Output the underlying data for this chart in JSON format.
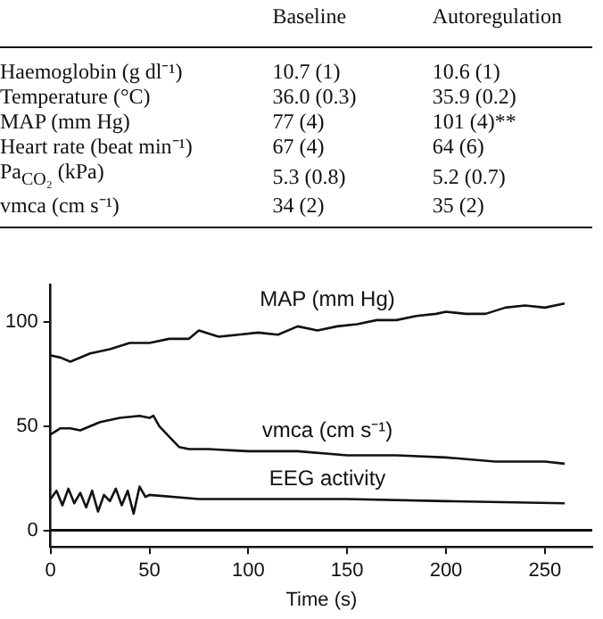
{
  "chart_data": {
    "type": "line",
    "xlabel": "Time (s)",
    "xlim": [
      0,
      274
    ],
    "xticks": [
      0,
      50,
      100,
      150,
      200,
      250
    ],
    "ylim": [
      -8,
      118
    ],
    "yticks": [
      0,
      50,
      100
    ],
    "grid": false,
    "legend": false,
    "marker": "none",
    "line_style": "solid",
    "ref_lines": [
      {
        "axis": "y",
        "value": 0,
        "color": "#111111"
      }
    ],
    "annotations": [
      "Baseline",
      "Autoregulation",
      "Haemoglobin (g dl⁻¹)",
      "10.7 (1)",
      "10.6 (1)",
      "Temperature (°C)",
      "36.0 (0.3)",
      "35.9 (0.2)",
      "MAP (mm Hg)",
      "77 (4)",
      "101 (4)**",
      "Heart rate (beat min⁻¹)",
      "67 (4)",
      "64 (6)",
      "Pa$_{CO₂}$ (kPa)",
      "5.3 (0.8)",
      "5.2 (0.7)",
      "vmca (cm s⁻¹)",
      "34 (2)",
      "35 (2)"
    ],
    "series": [
      {
        "name": "MAP (mm Hg)",
        "color": "#111111",
        "x": [
          0,
          5,
          10,
          20,
          30,
          40,
          50,
          60,
          70,
          75,
          85,
          95,
          105,
          115,
          125,
          135,
          145,
          155,
          165,
          175,
          185,
          195,
          200,
          210,
          220,
          230,
          240,
          250,
          260
        ],
        "values": [
          84,
          83,
          81,
          85,
          87,
          90,
          90,
          92,
          92,
          96,
          93,
          94,
          95,
          94,
          98,
          96,
          98,
          99,
          101,
          101,
          103,
          104,
          105,
          104,
          104,
          107,
          108,
          107,
          109
        ]
      },
      {
        "name": "vmca (cm s⁻¹)",
        "color": "#111111",
        "x": [
          0,
          5,
          10,
          15,
          25,
          35,
          45,
          50,
          52,
          55,
          60,
          65,
          70,
          80,
          100,
          125,
          150,
          175,
          200,
          225,
          250,
          260
        ],
        "values": [
          46,
          49,
          49,
          48,
          52,
          54,
          55,
          54,
          55,
          50,
          45,
          40,
          39,
          39,
          38,
          38,
          36,
          36,
          35,
          33,
          33,
          32
        ]
      },
      {
        "name": "EEG activity",
        "color": "#111111",
        "x": [
          0,
          3,
          6,
          9,
          12,
          15,
          18,
          21,
          24,
          27,
          30,
          33,
          36,
          39,
          42,
          45,
          48,
          50,
          75,
          150,
          200,
          260
        ],
        "values": [
          15,
          19,
          12,
          20,
          13,
          18,
          11,
          19,
          9,
          17,
          14,
          20,
          12,
          19,
          8,
          21,
          16,
          17,
          15,
          15,
          14,
          13
        ]
      }
    ]
  }
}
